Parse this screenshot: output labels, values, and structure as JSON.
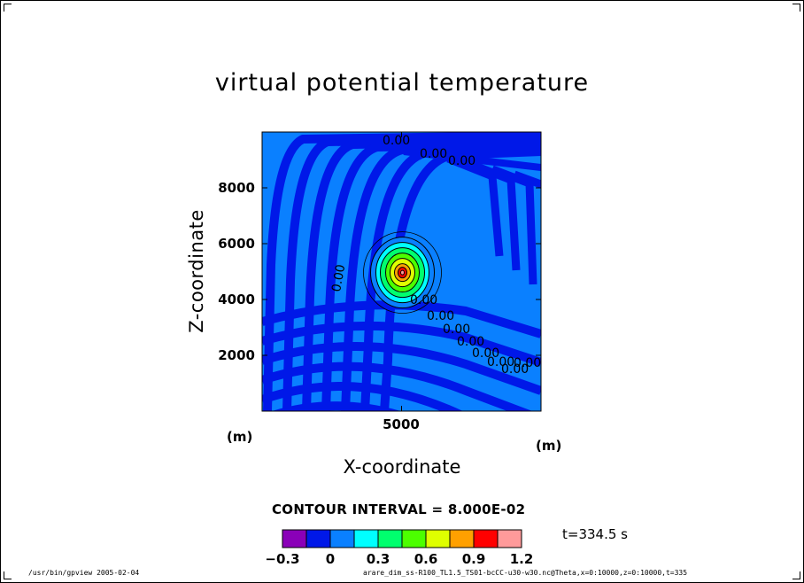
{
  "chart_data": {
    "type": "contour",
    "title": "virtual potential temperature",
    "xlabel": "X-coordinate",
    "ylabel": "Z-coordinate",
    "x_unit": "(m)",
    "y_unit": "(m)",
    "xlim": [
      0,
      10000
    ],
    "ylim": [
      0,
      10000
    ],
    "x_ticks": [
      "5000"
    ],
    "y_ticks": [
      "2000",
      "4000",
      "6000",
      "8000"
    ],
    "contour_interval_label": "CONTOUR INTERVAL = 8.000E-02",
    "contour_interval": 0.08,
    "contour_labels": [
      "0.00"
    ],
    "colorbar": {
      "levels": [
        -0.3,
        -0.15,
        0,
        0.15,
        0.3,
        0.45,
        0.6,
        0.75,
        0.9,
        1.05,
        1.2
      ],
      "tick_labels": [
        "−0.3",
        "0",
        "0.3",
        "0.6",
        "0.9",
        "1.2"
      ],
      "colors": [
        "#8a00b8",
        "#0018e8",
        "#0a80ff",
        "#00ffff",
        "#00ff6e",
        "#4cff00",
        "#dfff00",
        "#ffa000",
        "#ff0000",
        "#ff9a9a"
      ]
    },
    "thermal_peak": {
      "x": 5000,
      "z": 4900,
      "value": 1.0
    },
    "time_label": "t=334.5 s"
  },
  "footer": {
    "left": "/usr/bin/gpview   2005-02-04",
    "right": "arare_dim_ss-R100_TL1.5_TS01-bcCC-u30-w30.nc@Theta,x=0:10000,z=0:10000,t=335"
  }
}
